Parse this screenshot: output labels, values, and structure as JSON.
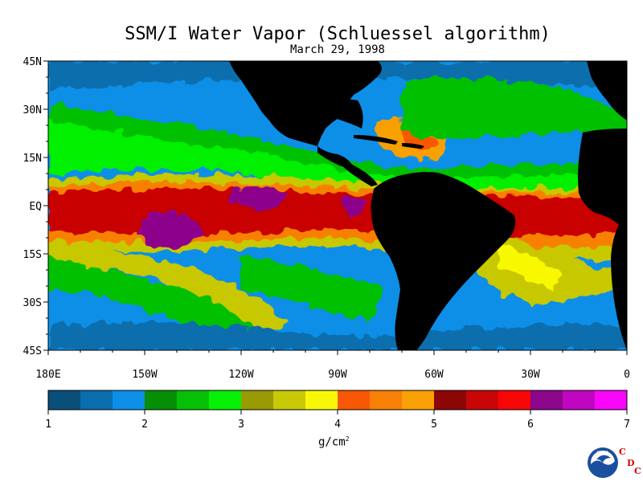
{
  "title": "SSM/I Water Vapor (Schluessel algorithm)",
  "date": "March 29, 1998",
  "lat_labels": [
    "45N",
    "30N",
    "15N",
    "EQ",
    "15S",
    "30S",
    "45S"
  ],
  "lon_labels": [
    "180E",
    "150W",
    "120W",
    "90W",
    "60W",
    "30W",
    "0"
  ],
  "colorbar": {
    "colors": [
      "#0a4f7a",
      "#0a6eae",
      "#0d8fe8",
      "#068e06",
      "#06c006",
      "#06f006",
      "#9a9a06",
      "#c8c806",
      "#f8f806",
      "#f85806",
      "#f88006",
      "#f8a006",
      "#8c0606",
      "#c80606",
      "#f80606",
      "#8c068c",
      "#c006c0",
      "#f806f8"
    ],
    "ticks": [
      "1",
      "2",
      "3",
      "4",
      "5",
      "6",
      "7"
    ],
    "units": "g/cm",
    "units_sup": "2"
  },
  "logo": {
    "text": "NOAA",
    "cdc": [
      "C",
      "D",
      "C"
    ]
  }
}
